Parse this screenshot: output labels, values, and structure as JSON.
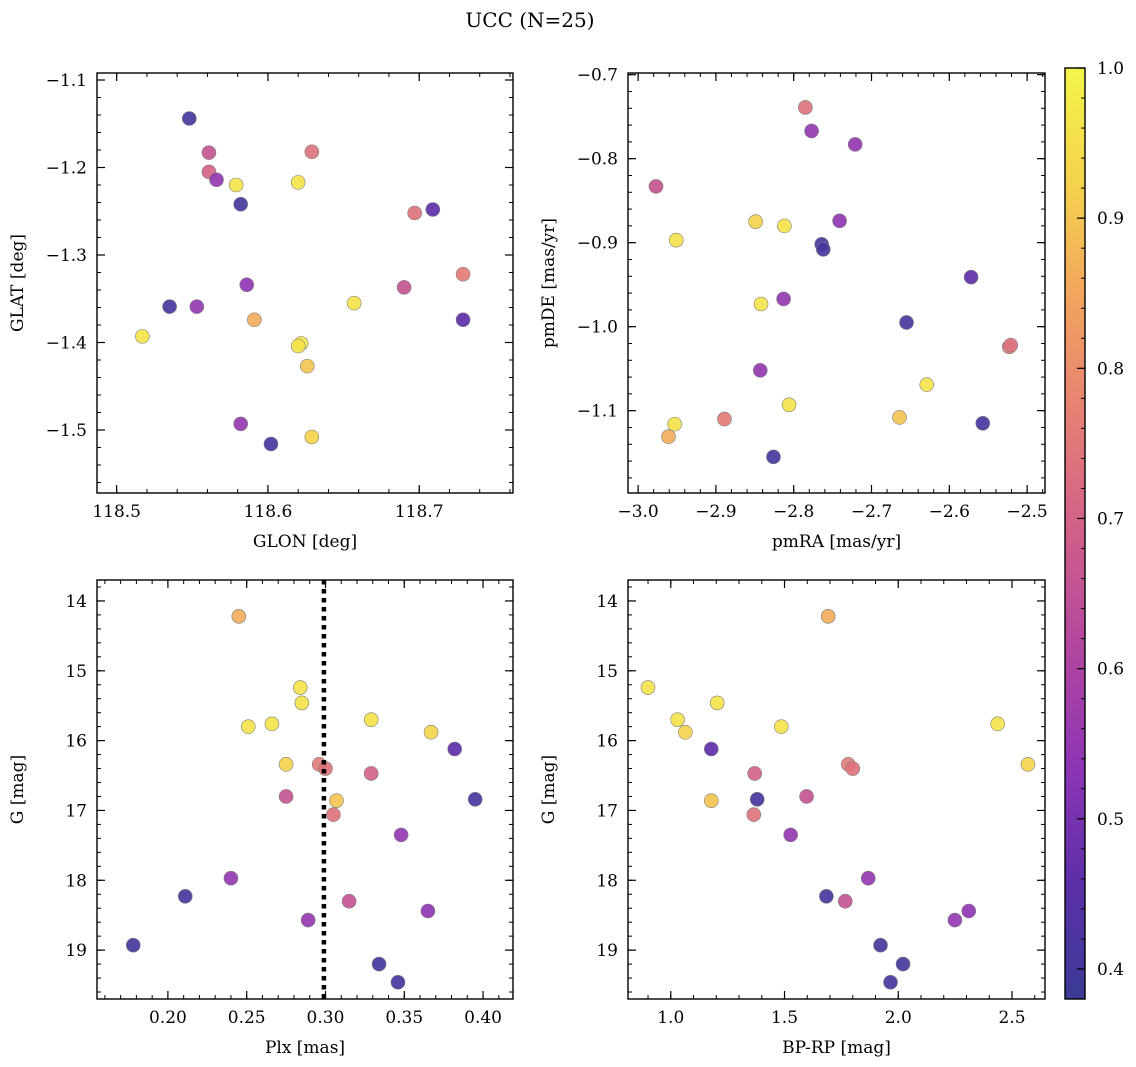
{
  "figure_title": "UCC (N=25)",
  "colors": {
    "colormap": [
      "#3b3b96",
      "#5c2fa8",
      "#8e35b5",
      "#b2469f",
      "#d05f8a",
      "#e57f75",
      "#f2a35f",
      "#f4d24d",
      "#f3f54a"
    ],
    "marker_edge": "#7f7f7f",
    "axis": "#000000",
    "vline": "#000000"
  },
  "colorbar": {
    "label": "",
    "range": [
      0.38,
      1.0
    ],
    "ticks": [
      0.4,
      0.5,
      0.6,
      0.7,
      0.8,
      0.9,
      1.0
    ],
    "tick_labels": [
      "0.4",
      "0.5",
      "0.6",
      "0.7",
      "0.8",
      "0.9",
      "1.0"
    ]
  },
  "chart_data": [
    {
      "type": "scatter",
      "id": "glon-glat",
      "title": "",
      "xlabel": "GLON [deg]",
      "ylabel": "GLAT [deg]",
      "xlim": [
        118.487,
        118.762
      ],
      "ylim": [
        -1.572,
        -1.092
      ],
      "y_inverted": false,
      "xticks": [
        118.5,
        118.6,
        118.7
      ],
      "xtick_labels": [
        "118.5",
        "118.6",
        "118.7"
      ],
      "yticks": [
        -1.1,
        -1.2,
        -1.3,
        -1.4,
        -1.5
      ],
      "ytick_labels": [
        "−1.1",
        "−1.2",
        "−1.3",
        "−1.4",
        "−1.5"
      ],
      "points": [
        {
          "x": 118.548,
          "y": -1.144,
          "c": 0.4
        },
        {
          "x": 118.561,
          "y": -1.183,
          "c": 0.66
        },
        {
          "x": 118.629,
          "y": -1.182,
          "c": 0.74
        },
        {
          "x": 118.561,
          "y": -1.205,
          "c": 0.7
        },
        {
          "x": 118.566,
          "y": -1.214,
          "c": 0.55
        },
        {
          "x": 118.579,
          "y": -1.22,
          "c": 0.96
        },
        {
          "x": 118.62,
          "y": -1.217,
          "c": 0.96
        },
        {
          "x": 118.582,
          "y": -1.242,
          "c": 0.4
        },
        {
          "x": 118.709,
          "y": -1.248,
          "c": 0.46
        },
        {
          "x": 118.697,
          "y": -1.252,
          "c": 0.74
        },
        {
          "x": 118.729,
          "y": -1.322,
          "c": 0.76
        },
        {
          "x": 118.69,
          "y": -1.337,
          "c": 0.66
        },
        {
          "x": 118.586,
          "y": -1.334,
          "c": 0.54
        },
        {
          "x": 118.657,
          "y": -1.355,
          "c": 0.96
        },
        {
          "x": 118.535,
          "y": -1.359,
          "c": 0.41
        },
        {
          "x": 118.553,
          "y": -1.359,
          "c": 0.55
        },
        {
          "x": 118.591,
          "y": -1.374,
          "c": 0.86
        },
        {
          "x": 118.729,
          "y": -1.374,
          "c": 0.46
        },
        {
          "x": 118.517,
          "y": -1.393,
          "c": 0.96
        },
        {
          "x": 118.622,
          "y": -1.401,
          "c": 0.97
        },
        {
          "x": 118.62,
          "y": -1.404,
          "c": 0.96
        },
        {
          "x": 118.626,
          "y": -1.427,
          "c": 0.9
        },
        {
          "x": 118.582,
          "y": -1.493,
          "c": 0.55
        },
        {
          "x": 118.629,
          "y": -1.508,
          "c": 0.93
        },
        {
          "x": 118.602,
          "y": -1.516,
          "c": 0.41
        }
      ]
    },
    {
      "type": "scatter",
      "id": "pmra-pmde",
      "title": "",
      "xlabel": "pmRA [mas/yr]",
      "ylabel": "pmDE [mas/yr]",
      "xlim": [
        -3.013,
        -2.477
      ],
      "ylim": [
        -1.198,
        -0.698
      ],
      "y_inverted": false,
      "xticks": [
        -3.0,
        -2.9,
        -2.8,
        -2.7,
        -2.6,
        -2.5
      ],
      "xtick_labels": [
        "−3.0",
        "−2.9",
        "−2.8",
        "−2.7",
        "−2.6",
        "−2.5"
      ],
      "yticks": [
        -0.7,
        -0.8,
        -0.9,
        -1.0,
        -1.1
      ],
      "ytick_labels": [
        "−0.7",
        "−0.8",
        "−0.9",
        "−1.0",
        "−1.1"
      ],
      "points": [
        {
          "x": -2.785,
          "y": -0.739,
          "c": 0.74
        },
        {
          "x": -2.777,
          "y": -0.767,
          "c": 0.55
        },
        {
          "x": -2.721,
          "y": -0.783,
          "c": 0.55
        },
        {
          "x": -2.977,
          "y": -0.833,
          "c": 0.66
        },
        {
          "x": -2.849,
          "y": -0.875,
          "c": 0.93
        },
        {
          "x": -2.812,
          "y": -0.88,
          "c": 0.96
        },
        {
          "x": -2.741,
          "y": -0.874,
          "c": 0.54
        },
        {
          "x": -2.951,
          "y": -0.897,
          "c": 0.96
        },
        {
          "x": -2.764,
          "y": -0.902,
          "c": 0.4
        },
        {
          "x": -2.762,
          "y": -0.908,
          "c": 0.41
        },
        {
          "x": -2.572,
          "y": -0.941,
          "c": 0.46
        },
        {
          "x": -2.813,
          "y": -0.967,
          "c": 0.55
        },
        {
          "x": -2.842,
          "y": -0.973,
          "c": 0.96
        },
        {
          "x": -2.655,
          "y": -0.995,
          "c": 0.41
        },
        {
          "x": -2.523,
          "y": -1.024,
          "c": 0.76
        },
        {
          "x": -2.521,
          "y": -1.022,
          "c": 0.74
        },
        {
          "x": -2.843,
          "y": -1.052,
          "c": 0.55
        },
        {
          "x": -2.629,
          "y": -1.069,
          "c": 0.96
        },
        {
          "x": -2.806,
          "y": -1.093,
          "c": 0.96
        },
        {
          "x": -2.664,
          "y": -1.108,
          "c": 0.9
        },
        {
          "x": -2.889,
          "y": -1.11,
          "c": 0.76
        },
        {
          "x": -2.953,
          "y": -1.116,
          "c": 0.96
        },
        {
          "x": -2.557,
          "y": -1.115,
          "c": 0.41
        },
        {
          "x": -2.961,
          "y": -1.131,
          "c": 0.86
        },
        {
          "x": -2.826,
          "y": -1.155,
          "c": 0.4
        }
      ]
    },
    {
      "type": "scatter",
      "id": "plx-g",
      "title": "",
      "xlabel": "Plx [mas]",
      "ylabel": "G [mag]",
      "xlim": [
        0.155,
        0.419
      ],
      "ylim": [
        19.7,
        13.7
      ],
      "y_inverted": true,
      "xticks": [
        0.2,
        0.25,
        0.3,
        0.35,
        0.4
      ],
      "xtick_labels": [
        "0.20",
        "0.25",
        "0.30",
        "0.35",
        "0.40"
      ],
      "yticks": [
        14,
        15,
        16,
        17,
        18,
        19
      ],
      "ytick_labels": [
        "14",
        "15",
        "16",
        "17",
        "18",
        "19"
      ],
      "vline": {
        "x": 0.299,
        "style": "dotted"
      },
      "points": [
        {
          "x": 0.245,
          "y": 14.22,
          "c": 0.86
        },
        {
          "x": 0.284,
          "y": 15.24,
          "c": 0.96
        },
        {
          "x": 0.285,
          "y": 15.46,
          "c": 0.96
        },
        {
          "x": 0.251,
          "y": 15.8,
          "c": 0.96
        },
        {
          "x": 0.266,
          "y": 15.76,
          "c": 0.96
        },
        {
          "x": 0.329,
          "y": 15.7,
          "c": 0.96
        },
        {
          "x": 0.367,
          "y": 15.88,
          "c": 0.93
        },
        {
          "x": 0.382,
          "y": 16.12,
          "c": 0.46
        },
        {
          "x": 0.275,
          "y": 16.34,
          "c": 0.93
        },
        {
          "x": 0.296,
          "y": 16.34,
          "c": 0.76
        },
        {
          "x": 0.3,
          "y": 16.4,
          "c": 0.74
        },
        {
          "x": 0.329,
          "y": 16.47,
          "c": 0.7
        },
        {
          "x": 0.275,
          "y": 16.8,
          "c": 0.66
        },
        {
          "x": 0.307,
          "y": 16.86,
          "c": 0.9
        },
        {
          "x": 0.395,
          "y": 16.84,
          "c": 0.41
        },
        {
          "x": 0.305,
          "y": 17.06,
          "c": 0.74
        },
        {
          "x": 0.348,
          "y": 17.35,
          "c": 0.55
        },
        {
          "x": 0.24,
          "y": 17.97,
          "c": 0.55
        },
        {
          "x": 0.211,
          "y": 18.23,
          "c": 0.41
        },
        {
          "x": 0.315,
          "y": 18.3,
          "c": 0.66
        },
        {
          "x": 0.365,
          "y": 18.44,
          "c": 0.54
        },
        {
          "x": 0.289,
          "y": 18.57,
          "c": 0.55
        },
        {
          "x": 0.178,
          "y": 18.93,
          "c": 0.4
        },
        {
          "x": 0.334,
          "y": 19.2,
          "c": 0.4
        },
        {
          "x": 0.346,
          "y": 19.46,
          "c": 0.41
        }
      ]
    },
    {
      "type": "scatter",
      "id": "bprp-g",
      "title": "",
      "xlabel": "BP-RP [mag]",
      "ylabel": "G [mag]",
      "xlim": [
        0.812,
        2.645
      ],
      "ylim": [
        19.7,
        13.7
      ],
      "y_inverted": true,
      "xticks": [
        1.0,
        1.5,
        2.0,
        2.5
      ],
      "xtick_labels": [
        "1.0",
        "1.5",
        "2.0",
        "2.5"
      ],
      "yticks": [
        14,
        15,
        16,
        17,
        18,
        19
      ],
      "ytick_labels": [
        "14",
        "15",
        "16",
        "17",
        "18",
        "19"
      ],
      "points": [
        {
          "x": 1.692,
          "y": 14.22,
          "c": 0.86
        },
        {
          "x": 0.9,
          "y": 15.24,
          "c": 0.96
        },
        {
          "x": 1.204,
          "y": 15.46,
          "c": 0.96
        },
        {
          "x": 1.03,
          "y": 15.7,
          "c": 0.96
        },
        {
          "x": 1.064,
          "y": 15.88,
          "c": 0.93
        },
        {
          "x": 1.486,
          "y": 15.8,
          "c": 0.96
        },
        {
          "x": 2.437,
          "y": 15.76,
          "c": 0.96
        },
        {
          "x": 1.178,
          "y": 16.12,
          "c": 0.46
        },
        {
          "x": 2.57,
          "y": 16.34,
          "c": 0.93
        },
        {
          "x": 1.78,
          "y": 16.34,
          "c": 0.76
        },
        {
          "x": 1.8,
          "y": 16.4,
          "c": 0.74
        },
        {
          "x": 1.369,
          "y": 16.47,
          "c": 0.7
        },
        {
          "x": 1.597,
          "y": 16.8,
          "c": 0.66
        },
        {
          "x": 1.38,
          "y": 16.84,
          "c": 0.41
        },
        {
          "x": 1.178,
          "y": 16.86,
          "c": 0.9
        },
        {
          "x": 1.365,
          "y": 17.06,
          "c": 0.74
        },
        {
          "x": 1.527,
          "y": 17.35,
          "c": 0.55
        },
        {
          "x": 1.868,
          "y": 17.97,
          "c": 0.55
        },
        {
          "x": 1.684,
          "y": 18.23,
          "c": 0.41
        },
        {
          "x": 1.767,
          "y": 18.3,
          "c": 0.66
        },
        {
          "x": 2.31,
          "y": 18.44,
          "c": 0.54
        },
        {
          "x": 2.249,
          "y": 18.57,
          "c": 0.55
        },
        {
          "x": 1.922,
          "y": 18.93,
          "c": 0.4
        },
        {
          "x": 2.021,
          "y": 19.2,
          "c": 0.4
        },
        {
          "x": 1.966,
          "y": 19.46,
          "c": 0.41
        }
      ]
    }
  ]
}
